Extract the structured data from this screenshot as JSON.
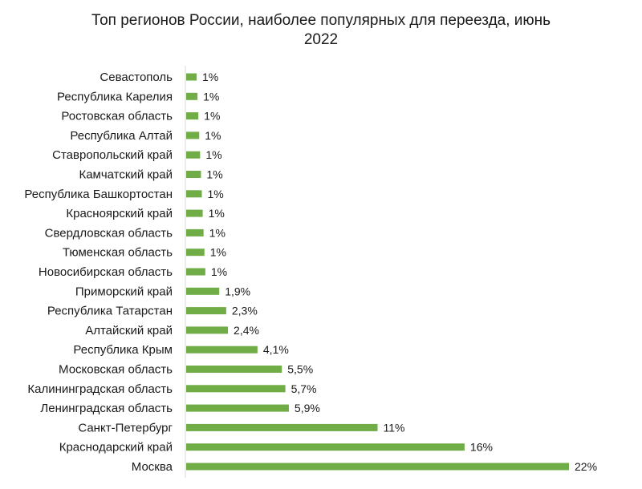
{
  "chart_data": {
    "type": "bar",
    "orientation": "horizontal",
    "title_lines": [
      "Топ регионов России, наиболее популярных для переезда, июнь",
      "2022"
    ],
    "categories": [
      "Севастополь",
      "Республика Карелия",
      "Ростовская область",
      "Республика Алтай",
      "Ставропольский край",
      "Камчатский край",
      "Республика Башкортостан",
      "Красноярский край",
      "Свердловская область",
      "Тюменская область",
      "Новосибирская область",
      "Приморский край",
      "Республика Татарстан",
      "Алтайский край",
      "Республика Крым",
      "Московская область",
      "Калининградская область",
      "Ленинградская область",
      "Санкт-Петербург",
      "Краснодарский край",
      "Москва"
    ],
    "values": [
      0.6,
      0.65,
      0.7,
      0.75,
      0.8,
      0.85,
      0.9,
      0.95,
      1.0,
      1.05,
      1.1,
      1.9,
      2.3,
      2.4,
      4.1,
      5.5,
      5.7,
      5.9,
      11,
      16,
      22
    ],
    "value_labels": [
      "1%",
      "1%",
      "1%",
      "1%",
      "1%",
      "1%",
      "1%",
      "1%",
      "1%",
      "1%",
      "1%",
      "1,9%",
      "2,3%",
      "2,4%",
      "4,1%",
      "5,5%",
      "5,7%",
      "5,9%",
      "11%",
      "16%",
      "22%"
    ],
    "xlim": [
      0,
      22
    ],
    "bar_color": "#70ad47",
    "axis_color": "#d9d9d9",
    "grid": false,
    "legend": false
  }
}
